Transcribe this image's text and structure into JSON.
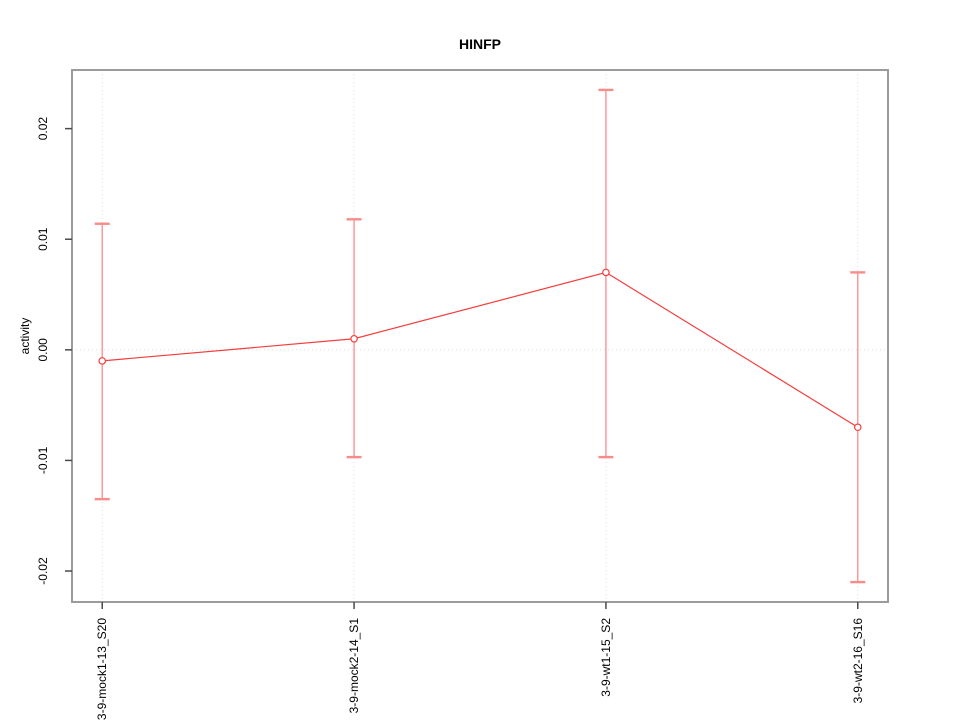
{
  "figure": {
    "background": "#ffffff"
  },
  "chart_data": {
    "type": "line",
    "title": "HINFP",
    "xlabel": "",
    "ylabel": "activity",
    "categories": [
      "3-9-mock1-13_S20",
      "3-9-mock2-14_S1",
      "3-9-wt1-15_S2",
      "3-9-wt2-16_S16"
    ],
    "series": [
      {
        "name": "HINFP activity",
        "values": [
          -0.001,
          0.001,
          0.007,
          -0.007
        ],
        "error_high": [
          0.0114,
          0.0118,
          0.0235,
          0.007
        ],
        "error_low": [
          -0.0135,
          -0.0097,
          -0.0097,
          -0.021
        ],
        "marker": "open-circle"
      }
    ],
    "ytick_values": [
      0.02,
      0.01,
      0,
      -0.01,
      -0.02
    ],
    "ytick_labels": [
      "0.02",
      "0.01",
      "0.00",
      "-0.01",
      "-0.02"
    ],
    "ylim": [
      -0.0228,
      0.0253
    ],
    "grid": {
      "vertical_at_categories": true,
      "horizontal_at_zero": true,
      "style": "dotted"
    },
    "legend": "none",
    "colors": {
      "series": "#f53d3d",
      "error_bar": "#f98b8b",
      "grid": "#dcdcdc",
      "frame": "#9b9b9b",
      "tick": "#4a4a4a",
      "text": "#000000",
      "background": "#ffffff"
    }
  }
}
